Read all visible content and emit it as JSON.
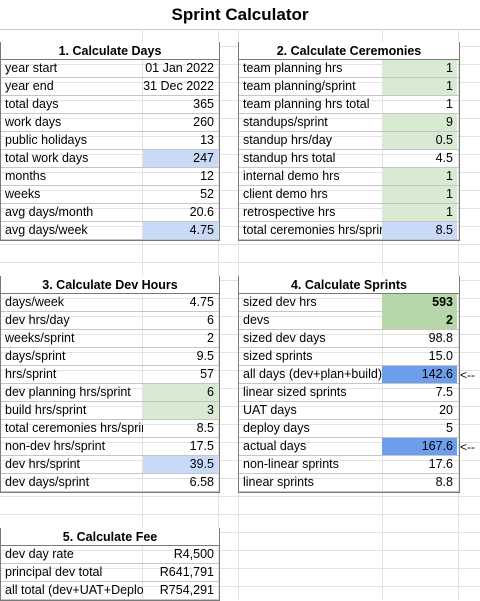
{
  "title": "Sprint Calculator",
  "sections": {
    "days": {
      "header": "1. Calculate Days",
      "rows": [
        {
          "label": "year start",
          "value": "01 Jan 2022"
        },
        {
          "label": "year end",
          "value": "31 Dec 2022"
        },
        {
          "label": "total days",
          "value": "365"
        },
        {
          "label": "work days",
          "value": "260"
        },
        {
          "label": "public holidays",
          "value": "13"
        },
        {
          "label": "total work days",
          "value": "247"
        },
        {
          "label": "months",
          "value": "12"
        },
        {
          "label": "weeks",
          "value": "52"
        },
        {
          "label": "avg days/month",
          "value": "20.6"
        },
        {
          "label": "avg days/week",
          "value": "4.75"
        }
      ]
    },
    "ceremonies": {
      "header": "2. Calculate Ceremonies",
      "rows": [
        {
          "label": "team planning hrs",
          "value": "1"
        },
        {
          "label": "team planning/sprint",
          "value": "1"
        },
        {
          "label": "team planning hrs total",
          "value": "1"
        },
        {
          "label": "standups/sprint",
          "value": "9"
        },
        {
          "label": "standup hrs/day",
          "value": "0.5"
        },
        {
          "label": "standup hrs total",
          "value": "4.5"
        },
        {
          "label": "internal demo hrs",
          "value": "1"
        },
        {
          "label": "client demo hrs",
          "value": "1"
        },
        {
          "label": "retrospective hrs",
          "value": "1"
        },
        {
          "label": "total ceremonies hrs/sprint",
          "value": "8.5"
        }
      ]
    },
    "devhours": {
      "header": "3. Calculate Dev Hours",
      "rows": [
        {
          "label": "days/week",
          "value": "4.75"
        },
        {
          "label": "dev hrs/day",
          "value": "6"
        },
        {
          "label": "weeks/sprint",
          "value": "2"
        },
        {
          "label": "days/sprint",
          "value": "9.5"
        },
        {
          "label": "hrs/sprint",
          "value": "57"
        },
        {
          "label": "dev planning hrs/sprint",
          "value": "6"
        },
        {
          "label": "build hrs/sprint",
          "value": "3"
        },
        {
          "label": "total ceremonies hrs/sprint",
          "value": "8.5"
        },
        {
          "label": "non-dev hrs/sprint",
          "value": "17.5"
        },
        {
          "label": "dev hrs/sprint",
          "value": "39.5"
        },
        {
          "label": "dev days/sprint",
          "value": "6.58"
        }
      ]
    },
    "sprints": {
      "header": "4. Calculate Sprints",
      "rows": [
        {
          "label": "sized dev hrs",
          "value": "593"
        },
        {
          "label": "devs",
          "value": "2"
        },
        {
          "label": "sized dev days",
          "value": "98.8"
        },
        {
          "label": "sized sprints",
          "value": "15.0"
        },
        {
          "label": "all days (dev+plan+build)",
          "value": "142.6",
          "note": "<--"
        },
        {
          "label": "linear sized sprints",
          "value": "7.5"
        },
        {
          "label": "UAT days",
          "value": "20"
        },
        {
          "label": "deploy days",
          "value": "5"
        },
        {
          "label": "actual days",
          "value": "167.6",
          "note": "<--"
        },
        {
          "label": "non-linear sprints",
          "value": "17.6"
        },
        {
          "label": "linear sprints",
          "value": "8.8"
        }
      ]
    },
    "fee": {
      "header": "5. Calculate Fee",
      "rows": [
        {
          "label": "dev day rate",
          "value": "R4,500"
        },
        {
          "label": "principal dev total",
          "value": "R641,791"
        },
        {
          "label": "all total (dev+UAT+Deploy)",
          "value": "R754,291"
        }
      ]
    }
  },
  "colors": {
    "input_green": "#d9ead3",
    "input_green_dark": "#b6d7a8",
    "result_blue": "#c9daf8",
    "result_blue_dark": "#6d9eeb"
  }
}
